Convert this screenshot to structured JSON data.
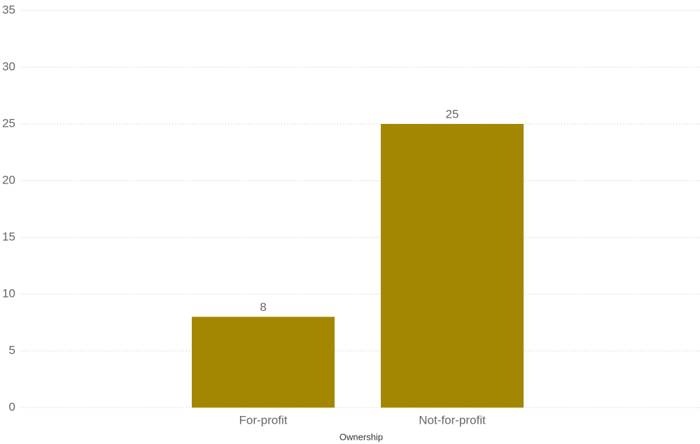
{
  "chart_data": {
    "type": "bar",
    "x_label": "Ownership",
    "categories": [
      "For-profit",
      "Not-for-profit"
    ],
    "values": [
      8,
      25
    ],
    "color": "#a38700",
    "ylim": [
      0,
      35
    ],
    "yticks": [
      0,
      5,
      10,
      15,
      20,
      25,
      30,
      35
    ],
    "grid": true,
    "data_labels": true
  }
}
